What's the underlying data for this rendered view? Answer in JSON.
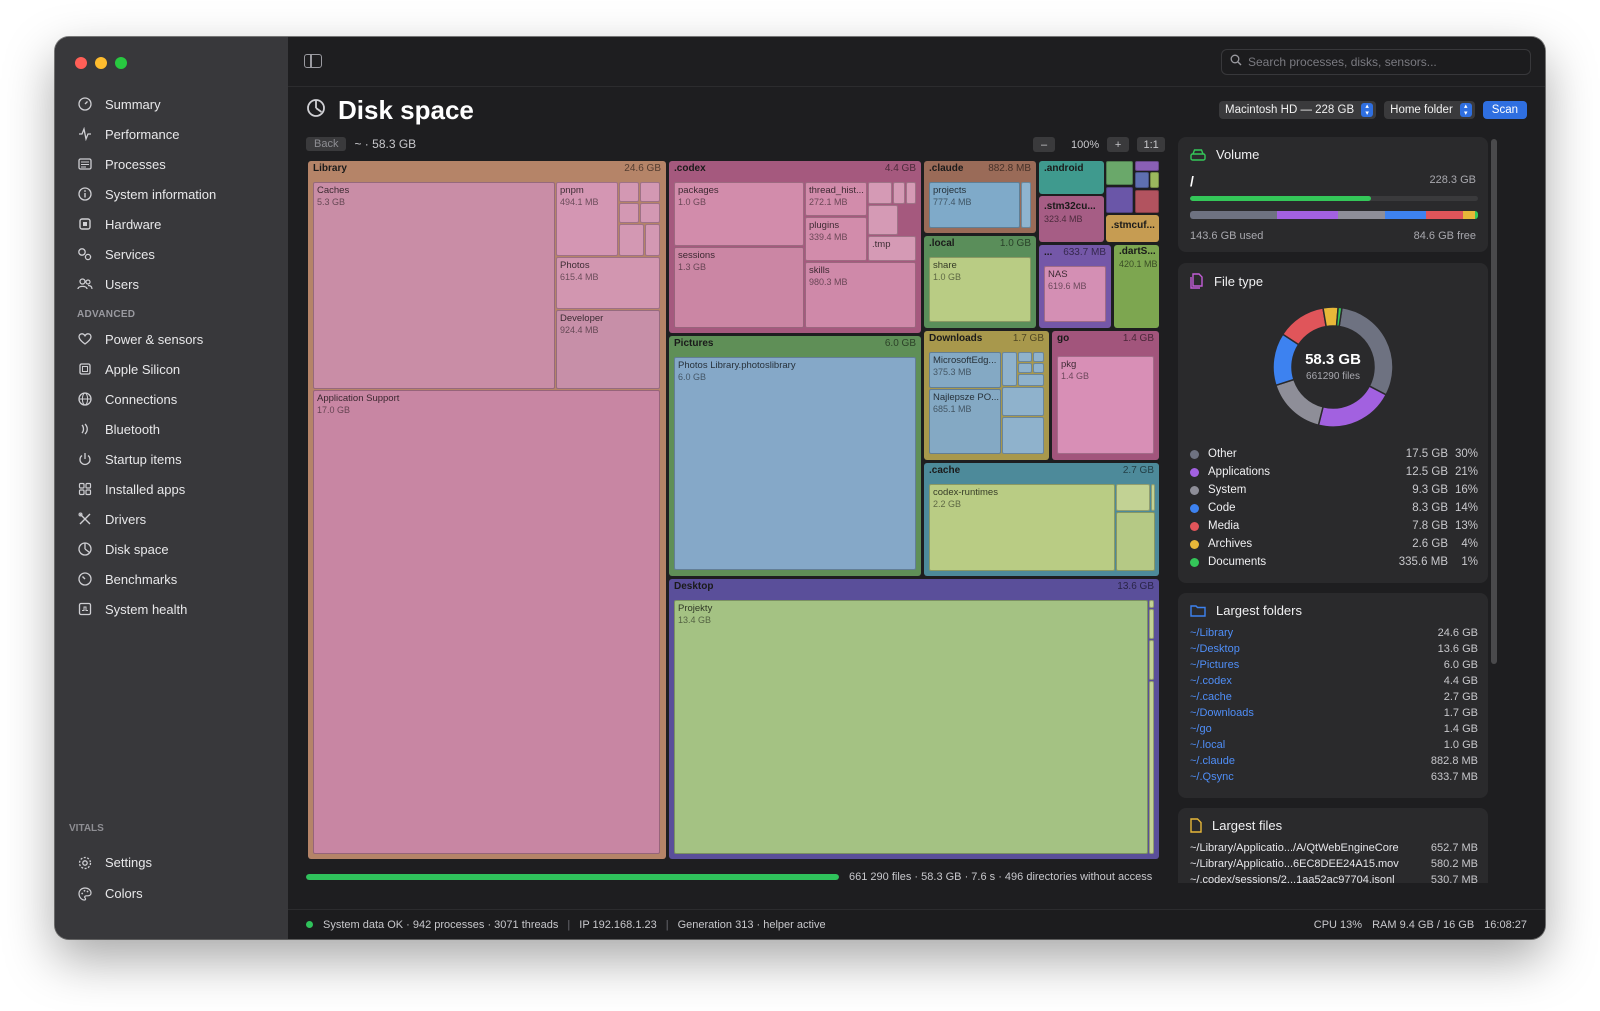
{
  "window": {
    "traffic_colors": [
      "#ff5f57",
      "#febc2e",
      "#28c840"
    ]
  },
  "sidebar": {
    "items": [
      {
        "label": "Summary",
        "icon": "gauge-icon"
      },
      {
        "label": "Performance",
        "icon": "pulse-icon"
      },
      {
        "label": "Processes",
        "icon": "list-icon"
      },
      {
        "label": "System information",
        "icon": "info-icon"
      },
      {
        "label": "Hardware",
        "icon": "chip-icon"
      },
      {
        "label": "Services",
        "icon": "gears-icon"
      },
      {
        "label": "Users",
        "icon": "users-icon"
      }
    ],
    "advanced_label": "ADVANCED",
    "advanced_items": [
      {
        "label": "Power & sensors",
        "icon": "heart-icon"
      },
      {
        "label": "Apple Silicon",
        "icon": "chip-icon"
      },
      {
        "label": "Connections",
        "icon": "globe-icon"
      },
      {
        "label": "Bluetooth",
        "icon": "bluetooth-icon"
      },
      {
        "label": "Startup items",
        "icon": "power-icon"
      },
      {
        "label": "Installed apps",
        "icon": "grid-icon"
      },
      {
        "label": "Drivers",
        "icon": "tools-icon"
      },
      {
        "label": "Disk space",
        "icon": "pie-icon"
      },
      {
        "label": "Benchmarks",
        "icon": "speedometer-icon"
      },
      {
        "label": "System health",
        "icon": "health-icon"
      }
    ],
    "vitals_label": "VITALS",
    "bottom_items": [
      {
        "label": "Settings",
        "icon": "gear-icon"
      },
      {
        "label": "Colors",
        "icon": "palette-icon"
      }
    ]
  },
  "toolbar": {
    "search_placeholder": "Search processes, disks, sensors..."
  },
  "header": {
    "title": "Disk space",
    "volume_select": "Macintosh HD — 228 GB",
    "scope_select": "Home folder",
    "scan_label": "Scan",
    "back_label": "Back",
    "crumb": "~ · 58.3 GB",
    "zoom_minus": "–",
    "zoom_level": "100%",
    "zoom_plus": "+",
    "zoom_fit": "1:1"
  },
  "treemap": {
    "library": {
      "label": "Library",
      "size": "24.6 GB"
    },
    "codex": {
      "label": ".codex",
      "size": "4.4 GB"
    },
    "claude": {
      "label": ".claude",
      "size": "882.8 MB"
    },
    "android": {
      "label": ".android"
    },
    "local": {
      "label": ".local",
      "size": "1.0 GB"
    },
    "qsync": {
      "label": "...",
      "size": "633.7 MB"
    },
    "dartserver": {
      "label": ".dartS...",
      "size": "420.1 MB"
    },
    "stm32": {
      "label": ".stm32cu...",
      "size": "323.4 MB"
    },
    "stmcube": {
      "label": ".stmcuf..."
    },
    "pictures": {
      "label": "Pictures",
      "size": "6.0 GB"
    },
    "downloads": {
      "label": "Downloads",
      "size": "1.7 GB"
    },
    "go": {
      "label": "go",
      "size": "1.4 GB"
    },
    "cache": {
      "label": ".cache",
      "size": "2.7 GB"
    },
    "desktop": {
      "label": "Desktop",
      "size": "13.6 GB"
    },
    "tiles": {
      "caches": {
        "name": "Caches",
        "size": "5.3 GB"
      },
      "pnpm": {
        "name": "pnpm",
        "size": "494.1 MB"
      },
      "photos": {
        "name": "Photos",
        "size": "615.4 MB"
      },
      "developer": {
        "name": "Developer",
        "size": "924.4 MB"
      },
      "appsupport": {
        "name": "Application Support",
        "size": "17.0 GB"
      },
      "packages": {
        "name": "packages",
        "size": "1.0 GB"
      },
      "threadhist": {
        "name": "thread_hist...",
        "size": "272.1 MB"
      },
      "plugins": {
        "name": "plugins",
        "size": "339.4 MB"
      },
      "tmp": {
        "name": ".tmp",
        "size": ""
      },
      "sessions": {
        "name": "sessions",
        "size": "1.3 GB"
      },
      "skills": {
        "name": "skills",
        "size": "980.3 MB"
      },
      "projects": {
        "name": "projects",
        "size": "777.4 MB"
      },
      "share": {
        "name": "share",
        "size": "1.0 GB"
      },
      "nas": {
        "name": "NAS",
        "size": "619.6 MB"
      },
      "photoslib": {
        "name": "Photos Library.photoslibrary",
        "size": "6.0 GB"
      },
      "msedge": {
        "name": "MicrosoftEdg...",
        "size": "375.3 MB"
      },
      "najlepsze": {
        "name": "Najlepsze PO...",
        "size": "685.1 MB"
      },
      "pkg": {
        "name": "pkg",
        "size": "1.4 GB"
      },
      "codexruntimes": {
        "name": "codex-runtimes",
        "size": "2.2 GB"
      },
      "projekty": {
        "name": "Projekty",
        "size": "13.4 GB"
      }
    }
  },
  "scan_progress": {
    "fraction": 1.0,
    "summary": "661 290 files · 58.3 GB · 7.6 s · 496 directories without access"
  },
  "status": {
    "left": "System data OK · 942 processes · 3071 threads",
    "ip": "IP 192.168.1.23",
    "generation": "Generation 313 · helper active",
    "cpu": "CPU 13%",
    "ram": "RAM 9.4 GB / 16 GB",
    "time": "16:08:27",
    "sep": "|"
  },
  "volume": {
    "title": "Volume",
    "mount": "/",
    "total": "228.3 GB",
    "used_fraction": 0.63,
    "used_label": "143.6 GB used",
    "free_label": "84.6 GB free"
  },
  "file_type": {
    "title": "File type",
    "center_value": "58.3 GB",
    "center_sub": "661290 files",
    "rows": [
      {
        "name": "Other",
        "size": "17.5 GB",
        "pct": "30%",
        "value": 30,
        "color": "#6e7281"
      },
      {
        "name": "Applications",
        "size": "12.5 GB",
        "pct": "21%",
        "value": 21,
        "color": "#a261e0"
      },
      {
        "name": "System",
        "size": "9.3 GB",
        "pct": "16%",
        "value": 16,
        "color": "#8e8e98"
      },
      {
        "name": "Code",
        "size": "8.3 GB",
        "pct": "14%",
        "value": 14,
        "color": "#3d82f0"
      },
      {
        "name": "Media",
        "size": "7.8 GB",
        "pct": "13%",
        "value": 13,
        "color": "#e0555a"
      },
      {
        "name": "Archives",
        "size": "2.6 GB",
        "pct": "4%",
        "value": 4,
        "color": "#e7b739"
      },
      {
        "name": "Documents",
        "size": "335.6 MB",
        "pct": "1%",
        "value": 1,
        "color": "#34c759"
      }
    ]
  },
  "largest_folders": {
    "title": "Largest folders",
    "rows": [
      {
        "path": "~/Library",
        "size": "24.6 GB"
      },
      {
        "path": "~/Desktop",
        "size": "13.6 GB"
      },
      {
        "path": "~/Pictures",
        "size": "6.0 GB"
      },
      {
        "path": "~/.codex",
        "size": "4.4 GB"
      },
      {
        "path": "~/.cache",
        "size": "2.7 GB"
      },
      {
        "path": "~/Downloads",
        "size": "1.7 GB"
      },
      {
        "path": "~/go",
        "size": "1.4 GB"
      },
      {
        "path": "~/.local",
        "size": "1.0 GB"
      },
      {
        "path": "~/.claude",
        "size": "882.8 MB"
      },
      {
        "path": "~/.Qsync",
        "size": "633.7 MB"
      }
    ]
  },
  "largest_files": {
    "title": "Largest files",
    "rows": [
      {
        "path": "~/Library/Applicatio.../A/QtWebEngineCore",
        "size": "652.7 MB"
      },
      {
        "path": "~/Library/Applicatio...6EC8DEE24A15.mov",
        "size": "580.2 MB"
      },
      {
        "path": "~/.codex/sessions/2...1aa52ac97704.jsonl",
        "size": "530.7 MB"
      }
    ]
  }
}
